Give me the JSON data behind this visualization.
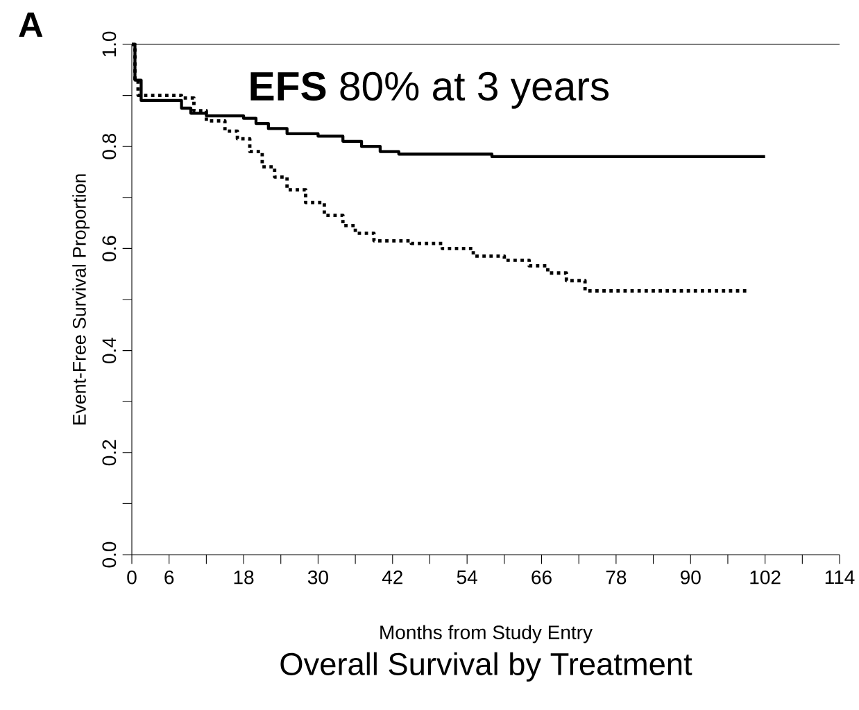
{
  "chart_data": {
    "type": "step",
    "title": "Overall Survival by Treatment",
    "xlabel": "Months from Study Entry",
    "ylabel": "Event-Free Survival Proportion",
    "annotations": [
      "A",
      "**EFS** 80% at 3 years"
    ],
    "xlim": [
      0,
      114
    ],
    "xticks": [
      0,
      6,
      {
        "value": 12,
        "label": null
      },
      18,
      {
        "value": 24,
        "label": null
      },
      30,
      {
        "value": 36,
        "label": null
      },
      42,
      {
        "value": 48,
        "label": null
      },
      54,
      {
        "value": 60,
        "label": null
      },
      66,
      {
        "value": 72,
        "label": null
      },
      78,
      {
        "value": 84,
        "label": null
      },
      90,
      {
        "value": 96,
        "label": null
      },
      102,
      {
        "value": 108,
        "label": null
      },
      114
    ],
    "ylim": [
      0,
      1
    ],
    "yticks": [
      {
        "value": 0,
        "label": "0.0"
      },
      {
        "value": 0.1,
        "label": null
      },
      {
        "value": 0.2,
        "label": "0.2"
      },
      {
        "value": 0.3,
        "label": null
      },
      {
        "value": 0.4,
        "label": "0.4"
      },
      {
        "value": 0.5,
        "label": null
      },
      {
        "value": 0.6,
        "label": "0.6"
      },
      {
        "value": 0.7,
        "label": null
      },
      {
        "value": 0.8,
        "label": "0.8"
      },
      {
        "value": 0.9,
        "label": null
      },
      {
        "value": 1,
        "label": "1.0"
      }
    ],
    "ref_lines": [
      {
        "axis": "y",
        "value": 1,
        "color": "#000000"
      }
    ],
    "series": [
      {
        "color": "#000000",
        "line_style": "solid",
        "x": [
          0,
          0.5,
          1.5,
          8,
          9.5,
          12,
          18,
          20,
          22,
          25,
          30,
          34,
          37,
          40,
          43,
          58,
          102
        ],
        "values": [
          1.0,
          0.93,
          0.89,
          0.875,
          0.865,
          0.86,
          0.855,
          0.845,
          0.835,
          0.825,
          0.82,
          0.81,
          0.8,
          0.79,
          0.785,
          0.78,
          0.78
        ]
      },
      {
        "color": "#000000",
        "line_style": "dotted",
        "x": [
          0,
          0.5,
          1,
          8,
          10,
          12,
          15,
          17,
          19,
          21,
          23,
          25,
          28,
          31,
          34,
          36,
          39,
          45,
          50,
          55,
          60,
          64,
          67,
          70,
          73,
          99
        ],
        "values": [
          1.0,
          0.93,
          0.9,
          0.895,
          0.87,
          0.85,
          0.83,
          0.815,
          0.79,
          0.76,
          0.74,
          0.715,
          0.69,
          0.665,
          0.645,
          0.63,
          0.615,
          0.61,
          0.6,
          0.585,
          0.577,
          0.566,
          0.552,
          0.537,
          0.517,
          0.517
        ]
      }
    ]
  }
}
